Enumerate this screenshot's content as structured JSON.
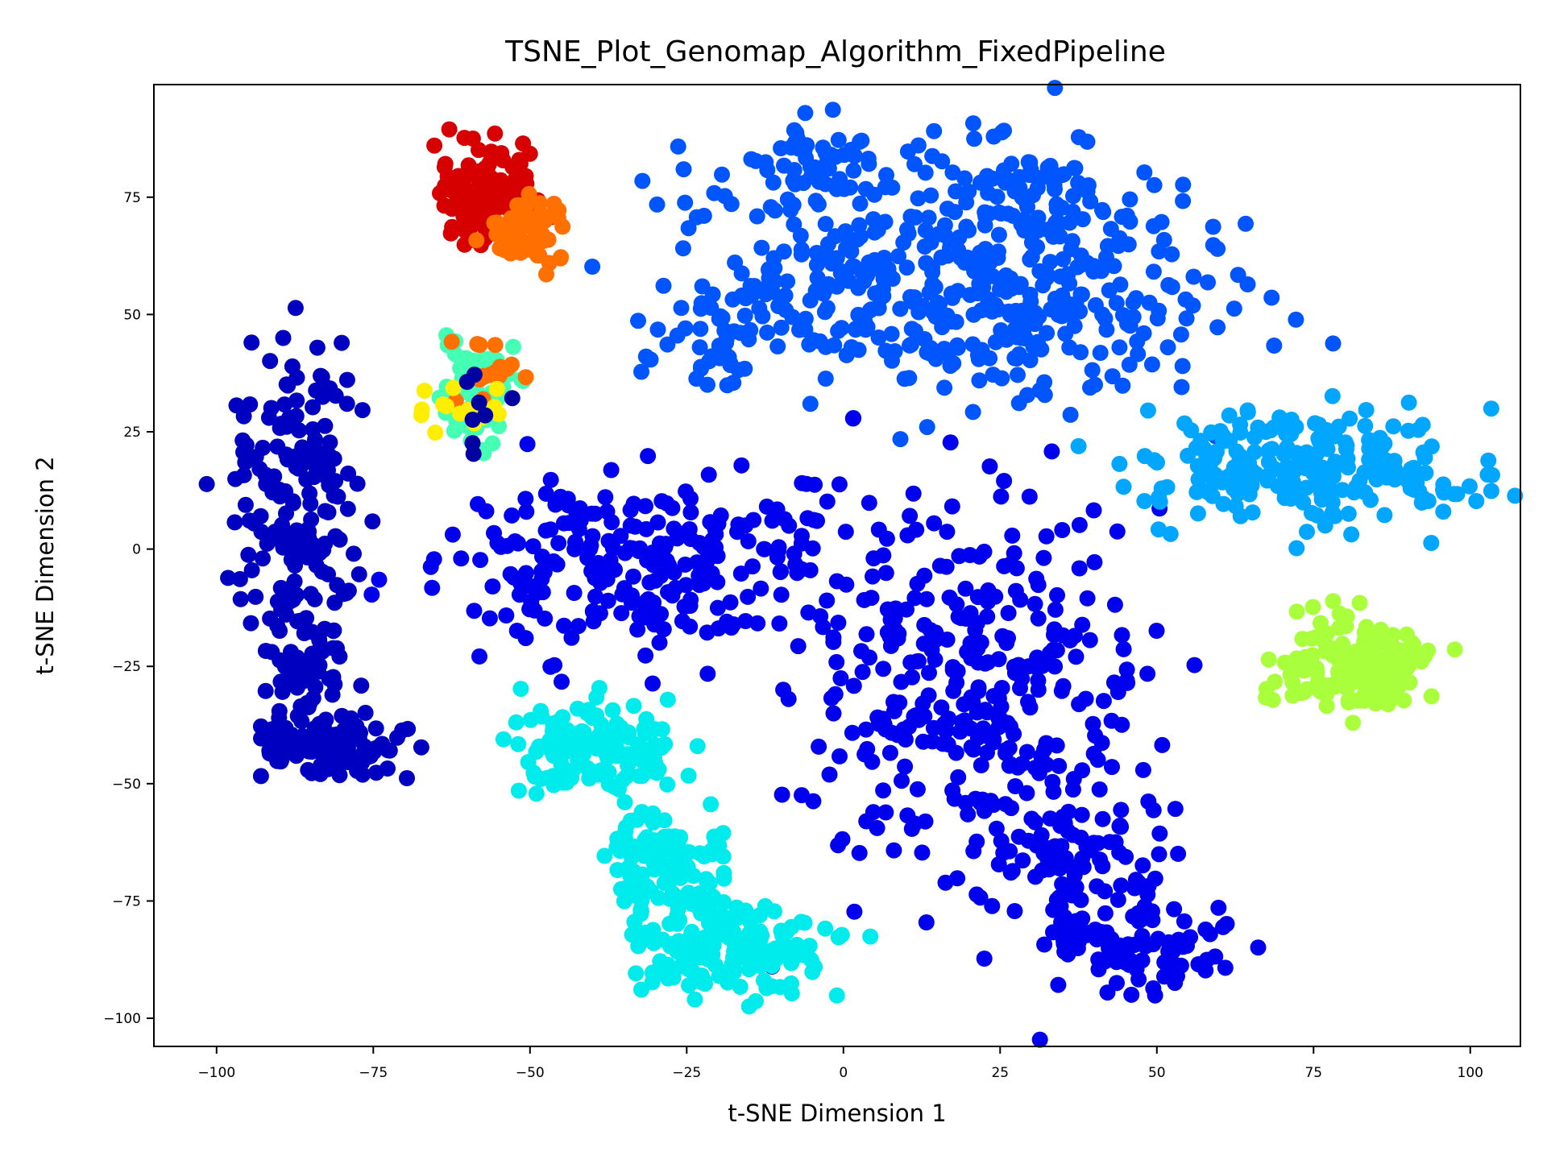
{
  "chart_data": {
    "type": "scatter",
    "title": "TSNE_Plot_Genomap_Algorithm_FixedPipeline",
    "xlabel": "t-SNE Dimension 1",
    "ylabel": "t-SNE Dimension 2",
    "xlim": [
      -110,
      108
    ],
    "ylim": [
      -106,
      99
    ],
    "xticks": [
      -100,
      -75,
      -50,
      -25,
      0,
      25,
      50,
      75,
      100
    ],
    "xtick_labels": [
      "−100",
      "−75",
      "−50",
      "−25",
      "0",
      "25",
      "50",
      "75",
      "100"
    ],
    "yticks": [
      -100,
      -75,
      -50,
      -25,
      0,
      25,
      50,
      75
    ],
    "ytick_labels": [
      "−100",
      "−75",
      "−50",
      "−25",
      "0",
      "25",
      "50",
      "75"
    ],
    "grid": false,
    "legend": "none",
    "colormap": "jet",
    "clusters": [
      {
        "color": "#0055ff",
        "center": [
          18,
          58
        ],
        "spread": [
          22,
          13
        ],
        "count": 460
      },
      {
        "color": "#0055ff",
        "center": [
          -5,
          82
        ],
        "spread": [
          6,
          4
        ],
        "count": 45
      },
      {
        "color": "#0055ff",
        "center": [
          30,
          78
        ],
        "spread": [
          9,
          5
        ],
        "count": 50
      },
      {
        "color": "#0055ff",
        "center": [
          -20,
          45
        ],
        "spread": [
          8,
          6
        ],
        "count": 45
      },
      {
        "color": "#0000ee",
        "center": [
          -30,
          -3
        ],
        "spread": [
          17,
          9
        ],
        "count": 250
      },
      {
        "color": "#0000ee",
        "center": [
          20,
          -30
        ],
        "spread": [
          13,
          20
        ],
        "count": 320
      },
      {
        "color": "#0000ee",
        "center": [
          38,
          -70
        ],
        "spread": [
          7,
          12
        ],
        "count": 120
      },
      {
        "color": "#0000ee",
        "center": [
          50,
          -86
        ],
        "spread": [
          7,
          4
        ],
        "count": 60
      },
      {
        "color": "#0000c0",
        "center": [
          -87,
          12
        ],
        "spread": [
          5,
          14
        ],
        "count": 170
      },
      {
        "color": "#0000c0",
        "center": [
          -85,
          -25
        ],
        "spread": [
          3,
          12
        ],
        "count": 80
      },
      {
        "color": "#0000c0",
        "center": [
          -80,
          -42
        ],
        "spread": [
          6,
          3
        ],
        "count": 90
      },
      {
        "color": "#00ecec",
        "center": [
          -40,
          -43
        ],
        "spread": [
          7,
          5
        ],
        "count": 130
      },
      {
        "color": "#00ecec",
        "center": [
          -28,
          -65
        ],
        "spread": [
          5,
          8
        ],
        "count": 110
      },
      {
        "color": "#00ecec",
        "center": [
          -18,
          -85
        ],
        "spread": [
          8,
          5
        ],
        "count": 170
      },
      {
        "color": "#00a6ff",
        "center": [
          75,
          17
        ],
        "spread": [
          14,
          6
        ],
        "count": 230
      },
      {
        "color": "#aaff3c",
        "center": [
          82,
          -25
        ],
        "spread": [
          6,
          5
        ],
        "count": 150
      },
      {
        "color": "#d60000",
        "center": [
          -57,
          75
        ],
        "spread": [
          4,
          5
        ],
        "count": 130
      },
      {
        "color": "#ff7000",
        "center": [
          -50,
          68
        ],
        "spread": [
          3,
          4
        ],
        "count": 60
      },
      {
        "color": "#44ffb4",
        "center": [
          -58,
          33
        ],
        "spread": [
          3,
          5
        ],
        "count": 70
      },
      {
        "color": "#ff7000",
        "center": [
          -56,
          37
        ],
        "spread": [
          3,
          4
        ],
        "count": 16
      },
      {
        "color": "#ffee00",
        "center": [
          -60,
          30
        ],
        "spread": [
          3,
          3
        ],
        "count": 14
      },
      {
        "color": "#0000a0",
        "center": [
          -58,
          28
        ],
        "spread": [
          3,
          4
        ],
        "count": 8
      }
    ]
  }
}
